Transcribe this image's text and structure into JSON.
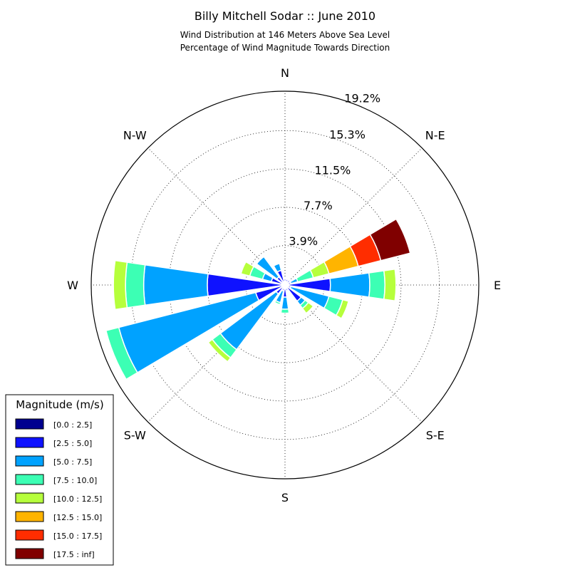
{
  "chart_data": {
    "type": "windrose",
    "title": "Billy Mitchell Sodar :: June 2010",
    "subtitle_lines": [
      "Wind Distribution at 146 Meters Above Sea Level",
      "Percentage of Wind Magnitude Towards Direction"
    ],
    "direction_labels": [
      "N",
      "N-E",
      "E",
      "S-E",
      "S",
      "S-W",
      "W",
      "N-W"
    ],
    "radial_ticks": [
      "3.9%",
      "7.7%",
      "11.5%",
      "15.3%",
      "19.2%"
    ],
    "radial_max": 19.2,
    "grid": true,
    "legend": {
      "title": "Magnitude (m/s)",
      "placement": "lower-left",
      "bins": [
        {
          "label": "[0.0 : 2.5]",
          "color": "#00008f"
        },
        {
          "label": "[2.5 : 5.0]",
          "color": "#0f12ff"
        },
        {
          "label": "[5.0 : 7.5]",
          "color": "#00a2ff"
        },
        {
          "label": "[7.5 : 10.0]",
          "color": "#3cffb4"
        },
        {
          "label": "[10.0 : 12.5]",
          "color": "#b6ff3c"
        },
        {
          "label": "[12.5 : 15.0]",
          "color": "#ffb400"
        },
        {
          "label": "[15.0 : 17.5]",
          "color": "#ff2d00"
        },
        {
          "label": "[17.5 : inf]",
          "color": "#800000"
        }
      ]
    },
    "sectors": [
      {
        "direction_deg": 0,
        "cumulative": [
          0.3,
          0.6
        ]
      },
      {
        "direction_deg": 22.5,
        "cumulative": [
          0.3,
          0.6
        ]
      },
      {
        "direction_deg": 45,
        "cumulative": [
          0.3,
          0.6
        ]
      },
      {
        "direction_deg": 67.5,
        "cumulative": [
          0.3,
          0.6,
          1.3,
          2.9,
          4.5,
          7.5,
          9.8,
          12.8
        ]
      },
      {
        "direction_deg": 90,
        "cumulative": [
          0.3,
          4.5,
          8.4,
          9.9,
          11.0
        ]
      },
      {
        "direction_deg": 112.5,
        "cumulative": [
          0.3,
          0.6,
          4.5,
          5.9,
          6.5
        ]
      },
      {
        "direction_deg": 135,
        "cumulative": [
          0.3,
          2.0,
          2.5,
          2.9,
          3.5
        ]
      },
      {
        "direction_deg": 157.5,
        "cumulative": [
          0.3,
          0.6
        ]
      },
      {
        "direction_deg": 180,
        "cumulative": [
          0.3,
          1.2,
          2.4,
          2.8
        ]
      },
      {
        "direction_deg": 202.5,
        "cumulative": [
          0.3,
          0.6,
          1.8,
          2.0
        ]
      },
      {
        "direction_deg": 225,
        "cumulative": [
          0.3,
          1.1,
          8.0,
          9.0,
          9.5
        ]
      },
      {
        "direction_deg": 247.5,
        "cumulative": [
          0.3,
          3.0,
          17.0,
          18.3
        ]
      },
      {
        "direction_deg": 270,
        "cumulative": [
          0.3,
          7.7,
          14.0,
          15.8,
          17.0
        ]
      },
      {
        "direction_deg": 292.5,
        "cumulative": [
          0.3,
          1.4,
          2.3,
          3.6,
          4.5
        ]
      },
      {
        "direction_deg": 315,
        "cumulative": [
          0.3,
          1.0,
          3.5
        ]
      },
      {
        "direction_deg": 337.5,
        "cumulative": [
          0.3,
          1.5,
          2.2
        ]
      }
    ]
  }
}
